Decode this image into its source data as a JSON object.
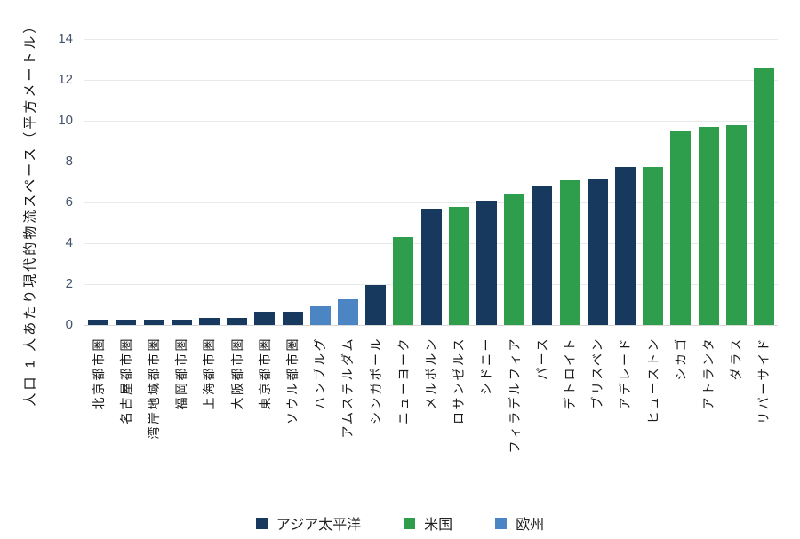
{
  "chart_data": {
    "type": "bar",
    "title": "",
    "ylabel": "人口 1 人あたり現代的物流スペース（平方メートル）",
    "xlabel": "",
    "ylim": [
      0,
      14
    ],
    "ytick_step": 2,
    "yticks": [
      0,
      2,
      4,
      6,
      8,
      10,
      12,
      14
    ],
    "grid": "horizontal",
    "legend_position": "bottom-center",
    "colors": {
      "gridline": "#e9e9e9",
      "axis_line": "#d8d8d8",
      "tick_text": "#44546a",
      "category_text": "#1a1a1a",
      "background": "#ffffff"
    },
    "groups": [
      {
        "id": "apac",
        "label": "アジア太平洋",
        "color": "#17395e"
      },
      {
        "id": "us",
        "label": "米国",
        "color": "#2e9e4d"
      },
      {
        "id": "europe",
        "label": "欧州",
        "color": "#4c85c4"
      }
    ],
    "bars": [
      {
        "category": "北京都市圏",
        "group": "apac",
        "value": 0.25
      },
      {
        "category": "名古屋都市圏",
        "group": "apac",
        "value": 0.25
      },
      {
        "category": "湾岸地域都市圏",
        "group": "apac",
        "value": 0.25
      },
      {
        "category": "福岡都市圏",
        "group": "apac",
        "value": 0.25
      },
      {
        "category": "上海都市圏",
        "group": "apac",
        "value": 0.35
      },
      {
        "category": "大阪都市圏",
        "group": "apac",
        "value": 0.35
      },
      {
        "category": "東京都市圏",
        "group": "apac",
        "value": 0.65
      },
      {
        "category": "ソウル都市圏",
        "group": "apac",
        "value": 0.65
      },
      {
        "category": "ハンブルグ",
        "group": "europe",
        "value": 0.9
      },
      {
        "category": "アムステルダム",
        "group": "europe",
        "value": 1.25
      },
      {
        "category": "シンガポール",
        "group": "apac",
        "value": 1.95
      },
      {
        "category": "ニューヨーク",
        "group": "us",
        "value": 4.3
      },
      {
        "category": "メルボルン",
        "group": "apac",
        "value": 5.7
      },
      {
        "category": "ロサンゼルス",
        "group": "us",
        "value": 5.8
      },
      {
        "category": "シドニー",
        "group": "apac",
        "value": 6.1
      },
      {
        "category": "フィラデルフィア",
        "group": "us",
        "value": 6.4
      },
      {
        "category": "パース",
        "group": "apac",
        "value": 6.8
      },
      {
        "category": "デトロイト",
        "group": "us",
        "value": 7.1
      },
      {
        "category": "ブリスベン",
        "group": "apac",
        "value": 7.15
      },
      {
        "category": "アデレード",
        "group": "apac",
        "value": 7.75
      },
      {
        "category": "ヒューストン",
        "group": "us",
        "value": 7.75
      },
      {
        "category": "シカゴ",
        "group": "us",
        "value": 9.5
      },
      {
        "category": "アトランタ",
        "group": "us",
        "value": 9.7
      },
      {
        "category": "ダラス",
        "group": "us",
        "value": 9.8
      },
      {
        "category": "リバーサイド",
        "group": "us",
        "value": 12.55
      }
    ]
  }
}
